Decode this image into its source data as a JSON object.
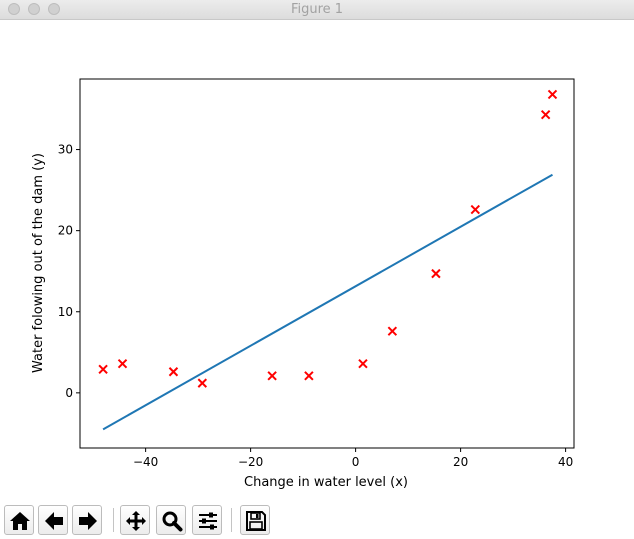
{
  "window": {
    "title": "Figure 1"
  },
  "toolbar": {
    "buttons": [
      {
        "name": "home-button",
        "icon": "home-icon"
      },
      {
        "name": "back-button",
        "icon": "arrow-left-icon"
      },
      {
        "name": "forward-button",
        "icon": "arrow-right-icon"
      },
      {
        "name": "pan-button",
        "icon": "move-icon"
      },
      {
        "name": "zoom-button",
        "icon": "magnifier-icon"
      },
      {
        "name": "configure-subplots-button",
        "icon": "sliders-icon"
      },
      {
        "name": "save-button",
        "icon": "floppy-disk-icon"
      }
    ]
  },
  "chart_data": {
    "type": "scatter",
    "title": "",
    "xlabel": "Change in water level (x)",
    "ylabel": "Water folowing out of the dam (y)",
    "xlim": [
      -52.5,
      41.6
    ],
    "ylim": [
      -6.8,
      38.7
    ],
    "xticks": [
      -40,
      -20,
      0,
      20,
      40
    ],
    "xtick_labels": [
      "−40",
      "−20",
      "0",
      "20",
      "40"
    ],
    "yticks": [
      0,
      10,
      20,
      30
    ],
    "ytick_labels": [
      "0",
      "10",
      "20",
      "30"
    ],
    "grid": false,
    "legend": "none",
    "series": [
      {
        "type": "scatter",
        "marker": "x",
        "color": "#ff0000",
        "x": [
          -48.1,
          -44.4,
          -34.7,
          -29.2,
          -15.9,
          -8.9,
          1.4,
          7.0,
          15.3,
          22.8,
          36.2,
          37.5
        ],
        "y": [
          2.9,
          3.6,
          2.6,
          1.2,
          2.1,
          2.1,
          3.6,
          7.6,
          14.7,
          22.6,
          34.3,
          36.8
        ]
      },
      {
        "type": "line",
        "color": "#1f77b4",
        "x": [
          -48.1,
          37.5
        ],
        "y": [
          -4.5,
          26.9
        ]
      }
    ]
  }
}
